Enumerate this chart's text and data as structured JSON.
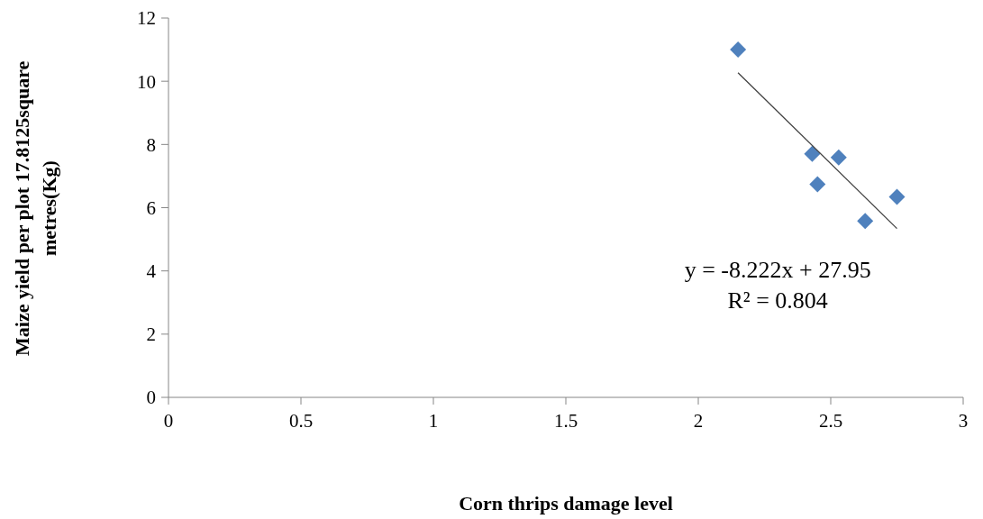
{
  "chart_data": {
    "type": "scatter",
    "xlabel": "Corn thrips  damage level",
    "ylabel": "Maize yield per plot 17.8125square metres(Kg)",
    "annotations": [
      "y = -8.222x + 27.95",
      "R² = 0.804"
    ],
    "x": [
      2.15,
      2.43,
      2.53,
      2.45,
      2.63,
      2.75
    ],
    "series": [
      {
        "color": "#4f81bd",
        "values": [
          11.0,
          7.7,
          7.59,
          6.74,
          5.58,
          6.34
        ],
        "marker": "diamond"
      },
      {
        "type": "line",
        "color": "#404040",
        "x": [
          2.15,
          2.75
        ],
        "values": [
          10.27,
          5.34
        ],
        "marker": "none"
      }
    ],
    "xlim": [
      0,
      3
    ],
    "xticks": [
      0,
      0.5,
      1,
      1.5,
      2,
      2.5,
      3
    ],
    "ylim": [
      0,
      12
    ],
    "yticks": [
      0,
      2,
      4,
      6,
      8,
      10,
      12
    ],
    "grid": false
  }
}
